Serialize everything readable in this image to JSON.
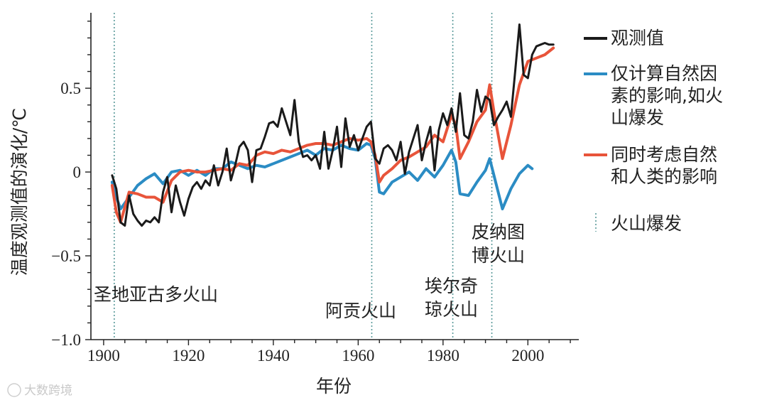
{
  "chart_data": {
    "type": "line",
    "title": "",
    "xlabel": "年份",
    "ylabel": "温度观测值的演化/℃",
    "xlim": [
      1897,
      2012
    ],
    "ylim": [
      -1.0,
      0.95
    ],
    "xticks": [
      1900,
      1920,
      1940,
      1960,
      1980,
      2000
    ],
    "yticks": [
      -1.0,
      -0.5,
      0,
      0.5
    ],
    "ytick_labels": [
      "−1.0",
      "−0.5",
      "0",
      "0.5"
    ],
    "legend_position": "right",
    "series": [
      {
        "name": "观测值",
        "color": "#1a1a1a",
        "x": [
          1902,
          1903,
          1904,
          1905,
          1906,
          1907,
          1908,
          1909,
          1910,
          1911,
          1912,
          1913,
          1914,
          1915,
          1916,
          1917,
          1918,
          1919,
          1920,
          1921,
          1922,
          1923,
          1924,
          1925,
          1926,
          1927,
          1928,
          1929,
          1930,
          1931,
          1932,
          1933,
          1934,
          1935,
          1936,
          1937,
          1938,
          1939,
          1940,
          1941,
          1942,
          1943,
          1944,
          1945,
          1946,
          1947,
          1948,
          1949,
          1950,
          1951,
          1952,
          1953,
          1954,
          1955,
          1956,
          1957,
          1958,
          1959,
          1960,
          1961,
          1962,
          1963,
          1964,
          1965,
          1966,
          1967,
          1968,
          1969,
          1970,
          1971,
          1972,
          1973,
          1974,
          1975,
          1976,
          1977,
          1978,
          1979,
          1980,
          1981,
          1982,
          1983,
          1984,
          1985,
          1986,
          1987,
          1988,
          1989,
          1990,
          1991,
          1992,
          1993,
          1994,
          1995,
          1996,
          1997,
          1998,
          1999,
          2000,
          2001,
          2002,
          2003,
          2004,
          2005,
          2006
        ],
        "y": [
          -0.02,
          -0.1,
          -0.3,
          -0.32,
          -0.14,
          -0.25,
          -0.29,
          -0.32,
          -0.29,
          -0.3,
          -0.27,
          -0.3,
          -0.12,
          -0.03,
          -0.24,
          -0.08,
          -0.18,
          -0.26,
          -0.16,
          -0.09,
          -0.06,
          -0.1,
          -0.05,
          -0.08,
          0.04,
          -0.08,
          0.0,
          0.14,
          -0.05,
          0.04,
          0.15,
          0.18,
          0.13,
          -0.06,
          0.13,
          0.14,
          0.21,
          0.29,
          0.3,
          0.27,
          0.38,
          0.3,
          0.22,
          0.43,
          0.18,
          0.09,
          0.1,
          0.07,
          0.1,
          0.02,
          0.24,
          0.02,
          0.13,
          0.27,
          0.03,
          0.32,
          0.15,
          0.22,
          0.13,
          0.2,
          0.27,
          0.3,
          0.08,
          0.05,
          0.14,
          0.16,
          0.13,
          0.07,
          0.18,
          -0.01,
          0.12,
          0.2,
          0.28,
          0.07,
          0.18,
          0.27,
          0.01,
          0.25,
          0.35,
          0.28,
          0.38,
          0.24,
          0.47,
          0.22,
          0.2,
          0.3,
          0.49,
          0.36,
          0.45,
          0.43,
          0.28,
          0.33,
          0.37,
          0.42,
          0.33,
          0.6,
          0.88,
          0.58,
          0.56,
          0.7,
          0.75,
          0.76,
          0.77,
          0.76,
          0.76
        ]
      },
      {
        "name": "仅计算自然因素的影响,如火山爆发",
        "color": "#2b8cc4",
        "x": [
          1902,
          1903,
          1904,
          1906,
          1908,
          1910,
          1912,
          1914,
          1916,
          1918,
          1920,
          1922,
          1924,
          1926,
          1928,
          1930,
          1932,
          1934,
          1936,
          1938,
          1940,
          1942,
          1944,
          1946,
          1948,
          1950,
          1952,
          1954,
          1956,
          1958,
          1960,
          1962,
          1963,
          1964,
          1965,
          1966,
          1968,
          1970,
          1972,
          1974,
          1976,
          1978,
          1980,
          1982,
          1983,
          1984,
          1986,
          1988,
          1990,
          1991,
          1992,
          1994,
          1996,
          1998,
          2000,
          2001
        ],
        "y": [
          -0.06,
          -0.15,
          -0.22,
          -0.15,
          -0.08,
          -0.04,
          -0.01,
          -0.07,
          0.0,
          0.01,
          -0.02,
          0.01,
          -0.02,
          0.02,
          0.02,
          0.06,
          0.04,
          0.02,
          0.04,
          0.03,
          0.05,
          0.07,
          0.09,
          0.11,
          0.13,
          0.1,
          0.14,
          0.13,
          0.16,
          0.14,
          0.13,
          0.17,
          0.16,
          0.08,
          -0.12,
          -0.13,
          -0.06,
          -0.03,
          0.0,
          -0.05,
          0.02,
          -0.03,
          0.04,
          0.13,
          0.06,
          -0.13,
          -0.14,
          -0.06,
          0.01,
          0.08,
          -0.02,
          -0.22,
          -0.1,
          -0.01,
          0.04,
          0.02
        ]
      },
      {
        "name": "同时考虑自然和人类的影响",
        "color": "#e8543a",
        "x": [
          1902,
          1903,
          1904,
          1906,
          1908,
          1910,
          1912,
          1914,
          1916,
          1918,
          1920,
          1922,
          1924,
          1926,
          1928,
          1930,
          1932,
          1934,
          1936,
          1938,
          1940,
          1942,
          1944,
          1946,
          1948,
          1950,
          1952,
          1954,
          1956,
          1958,
          1960,
          1962,
          1963,
          1964,
          1965,
          1966,
          1968,
          1970,
          1972,
          1974,
          1976,
          1978,
          1980,
          1982,
          1983,
          1984,
          1986,
          1988,
          1990,
          1991,
          1992,
          1994,
          1996,
          1998,
          2000,
          2002,
          2004,
          2006
        ],
        "y": [
          -0.08,
          -0.24,
          -0.3,
          -0.12,
          -0.13,
          -0.15,
          -0.15,
          -0.18,
          -0.05,
          0.0,
          0.01,
          0.0,
          0.0,
          0.01,
          0.02,
          0.01,
          0.05,
          0.04,
          0.1,
          0.12,
          0.11,
          0.13,
          0.12,
          0.14,
          0.16,
          0.17,
          0.17,
          0.16,
          0.18,
          0.2,
          0.19,
          0.2,
          0.18,
          0.1,
          -0.06,
          -0.02,
          0.02,
          0.07,
          0.09,
          0.12,
          0.15,
          0.22,
          0.18,
          0.34,
          0.28,
          0.08,
          0.18,
          0.3,
          0.37,
          0.52,
          0.36,
          0.08,
          0.28,
          0.52,
          0.66,
          0.68,
          0.7,
          0.74
        ]
      }
    ],
    "volcanic_eruptions": [
      {
        "year": 1902.5,
        "label": "圣地亚古多火山"
      },
      {
        "year": 1963.2,
        "label": "阿贡火山"
      },
      {
        "year": 1982.3,
        "label": "埃尔奇\n琼火山"
      },
      {
        "year": 1991.5,
        "label": "皮纳图\n博火山"
      }
    ],
    "legend": [
      {
        "key": "observed",
        "label_lines": [
          "观测值"
        ],
        "color": "#1a1a1a"
      },
      {
        "key": "natural",
        "label_lines": [
          "仅计算自然因",
          "素的影响,如火",
          "山爆发"
        ],
        "color": "#2b8cc4"
      },
      {
        "key": "combined",
        "label_lines": [
          "同时考虑自然",
          "和人类的影响"
        ],
        "color": "#e8543a"
      },
      {
        "key": "eruption",
        "label_lines": [
          "火山爆发"
        ],
        "color": "#5a9a9a"
      }
    ]
  },
  "watermark": {
    "text": "大数跨境"
  }
}
